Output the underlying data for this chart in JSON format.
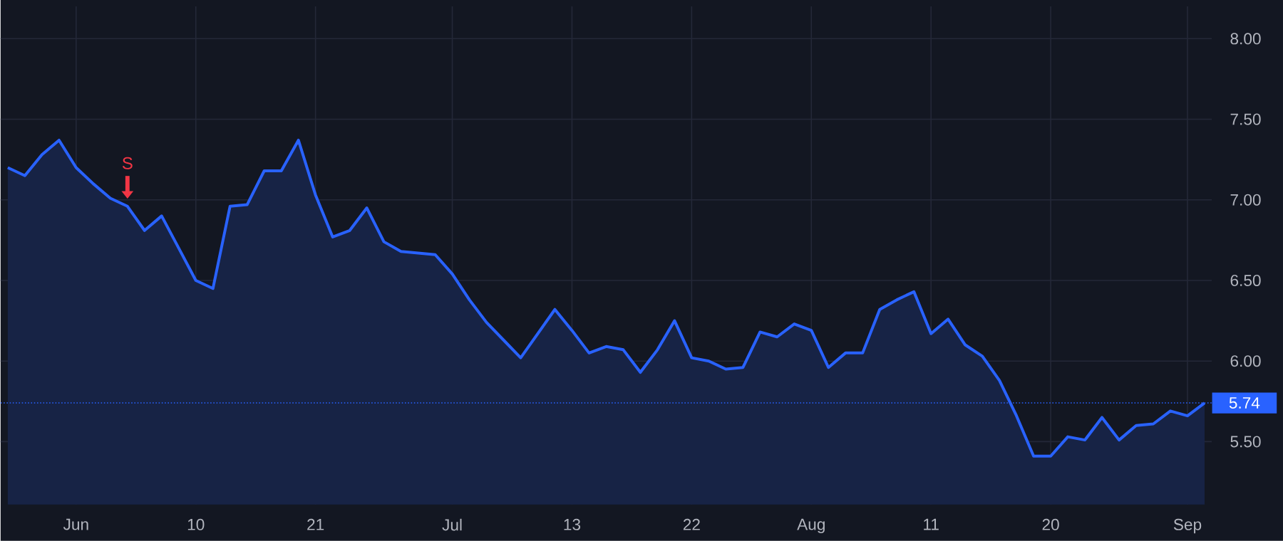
{
  "chart_data": {
    "type": "area",
    "color": "#2962ff",
    "categories": [
      null,
      null,
      null,
      null,
      "Jun",
      null,
      null,
      null,
      null,
      null,
      null,
      "10",
      null,
      null,
      null,
      null,
      null,
      null,
      "21",
      null,
      null,
      null,
      null,
      null,
      null,
      null,
      "Jul",
      null,
      null,
      null,
      null,
      null,
      null,
      "13",
      null,
      null,
      null,
      null,
      null,
      null,
      "22",
      null,
      null,
      null,
      null,
      null,
      null,
      "Aug",
      null,
      null,
      null,
      null,
      null,
      null,
      "11",
      null,
      null,
      null,
      null,
      null,
      null,
      "20",
      null,
      null,
      null,
      null,
      null,
      null,
      null,
      "Sep",
      null
    ],
    "values": [
      7.2,
      7.15,
      7.28,
      7.37,
      7.2,
      7.1,
      7.01,
      6.96,
      6.81,
      6.9,
      6.7,
      6.5,
      6.45,
      6.96,
      6.97,
      7.18,
      7.18,
      7.37,
      7.03,
      6.77,
      6.81,
      6.95,
      6.74,
      6.68,
      6.67,
      6.66,
      6.54,
      6.38,
      6.24,
      6.13,
      6.02,
      6.17,
      6.32,
      6.19,
      6.05,
      6.09,
      6.07,
      5.93,
      6.07,
      6.25,
      6.02,
      6.0,
      5.95,
      5.96,
      6.18,
      6.15,
      6.23,
      6.19,
      5.96,
      6.05,
      6.05,
      6.32,
      6.38,
      6.43,
      6.17,
      6.26,
      6.1,
      6.03,
      5.88,
      5.66,
      5.41,
      5.41,
      5.53,
      5.51,
      5.65,
      5.51,
      5.6,
      5.61,
      5.69,
      5.66,
      5.74
    ],
    "ylim": [
      5.11,
      8.2
    ],
    "yticks": [
      {
        "value": 5.5,
        "label": "5.50"
      },
      {
        "value": 6.0,
        "label": "6.00"
      },
      {
        "value": 6.5,
        "label": "6.50"
      },
      {
        "value": 7.0,
        "label": "7.00"
      },
      {
        "value": 7.5,
        "label": "7.50"
      },
      {
        "value": 8.0,
        "label": "8.00"
      }
    ],
    "grid": true,
    "ref_lines": [
      {
        "axis": "y",
        "value": 5.74,
        "label": "5.74",
        "color": "#2962ff",
        "line_style": "dotted"
      }
    ],
    "annotations": [
      {
        "text": "S",
        "y": 6.96
      }
    ]
  }
}
